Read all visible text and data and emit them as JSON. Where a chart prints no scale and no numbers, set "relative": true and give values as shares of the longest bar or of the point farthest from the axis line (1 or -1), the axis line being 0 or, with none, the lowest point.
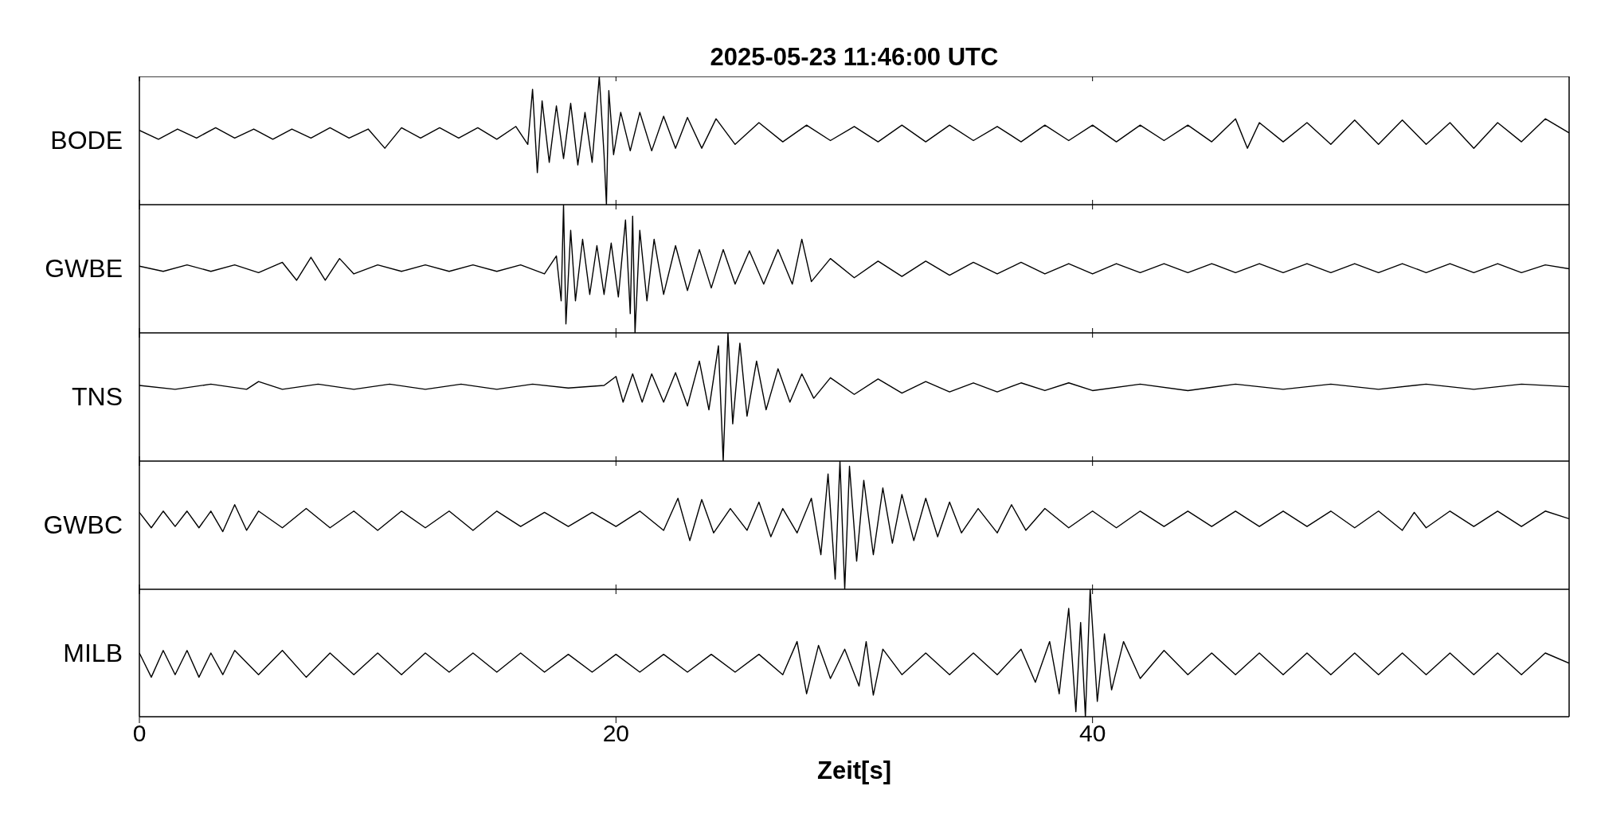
{
  "chart_data": [
    {
      "type": "line",
      "title": "2025-05-23  11:46:00 UTC",
      "ylabel": "BODE",
      "relative": true,
      "color": "#000000",
      "xlim": [
        0,
        60
      ],
      "xticks": [
        0,
        20,
        40
      ],
      "tick_labels": false,
      "x": [
        0,
        0.8,
        1.6,
        2.4,
        3.2,
        4,
        4.8,
        5.6,
        6.4,
        7.2,
        8,
        8.8,
        9.6,
        10.3,
        11,
        11.8,
        12.6,
        13.4,
        14.2,
        15,
        15.8,
        16.3,
        16.5,
        16.7,
        16.9,
        17.2,
        17.5,
        17.8,
        18.1,
        18.4,
        18.7,
        19,
        19.3,
        19.5,
        19.6,
        19.7,
        19.9,
        20.2,
        20.6,
        21,
        21.5,
        22,
        22.5,
        23,
        23.6,
        24.2,
        25,
        26,
        27,
        28,
        29,
        30,
        31,
        32,
        33,
        34,
        35,
        36,
        37,
        38,
        39,
        40,
        41,
        42,
        43,
        44,
        45,
        46,
        46.5,
        47,
        48,
        49,
        50,
        51,
        52,
        53,
        54,
        55,
        56,
        57,
        58,
        59,
        60
      ],
      "values": [
        0.58,
        0.51,
        0.59,
        0.52,
        0.6,
        0.52,
        0.59,
        0.51,
        0.59,
        0.52,
        0.6,
        0.52,
        0.59,
        0.44,
        0.6,
        0.52,
        0.6,
        0.52,
        0.6,
        0.51,
        0.61,
        0.47,
        0.9,
        0.25,
        0.81,
        0.33,
        0.77,
        0.36,
        0.79,
        0.31,
        0.72,
        0.33,
        1,
        0.39,
        0,
        0.89,
        0.39,
        0.72,
        0.42,
        0.72,
        0.42,
        0.69,
        0.44,
        0.68,
        0.44,
        0.67,
        0.47,
        0.64,
        0.49,
        0.62,
        0.5,
        0.61,
        0.49,
        0.62,
        0.49,
        0.62,
        0.5,
        0.61,
        0.49,
        0.62,
        0.5,
        0.62,
        0.49,
        0.62,
        0.5,
        0.62,
        0.49,
        0.67,
        0.44,
        0.64,
        0.49,
        0.64,
        0.47,
        0.66,
        0.47,
        0.66,
        0.47,
        0.64,
        0.44,
        0.64,
        0.49,
        0.67,
        0.56
      ]
    },
    {
      "type": "line",
      "ylabel": "GWBE",
      "relative": true,
      "color": "#000000",
      "xlim": [
        0,
        60
      ],
      "xticks": [
        0,
        20,
        40
      ],
      "tick_labels": false,
      "x": [
        0,
        1,
        2,
        3,
        4,
        5,
        6,
        6.6,
        7.2,
        7.8,
        8.4,
        9,
        10,
        11,
        12,
        13,
        14,
        15,
        16,
        17,
        17.5,
        17.7,
        17.8,
        17.9,
        18.1,
        18.3,
        18.6,
        18.9,
        19.2,
        19.5,
        19.8,
        20.1,
        20.4,
        20.6,
        20.7,
        20.8,
        21,
        21.3,
        21.6,
        22,
        22.5,
        23,
        23.5,
        24,
        24.5,
        25,
        25.6,
        26.2,
        26.8,
        27.4,
        27.8,
        28.2,
        29,
        30,
        31,
        32,
        33,
        34,
        35,
        36,
        37,
        38,
        39,
        40,
        41,
        42,
        43,
        44,
        45,
        46,
        47,
        48,
        49,
        50,
        51,
        52,
        53,
        54,
        55,
        56,
        57,
        58,
        59,
        60
      ],
      "values": [
        0.52,
        0.48,
        0.53,
        0.48,
        0.53,
        0.47,
        0.55,
        0.41,
        0.59,
        0.41,
        0.58,
        0.46,
        0.53,
        0.48,
        0.53,
        0.48,
        0.53,
        0.48,
        0.53,
        0.46,
        0.6,
        0.25,
        1,
        0.07,
        0.8,
        0.25,
        0.73,
        0.3,
        0.68,
        0.3,
        0.7,
        0.28,
        0.88,
        0.15,
        0.91,
        0,
        0.8,
        0.25,
        0.73,
        0.3,
        0.68,
        0.33,
        0.65,
        0.35,
        0.65,
        0.38,
        0.64,
        0.38,
        0.65,
        0.38,
        0.73,
        0.4,
        0.58,
        0.43,
        0.56,
        0.44,
        0.56,
        0.45,
        0.55,
        0.46,
        0.55,
        0.46,
        0.54,
        0.46,
        0.54,
        0.47,
        0.54,
        0.47,
        0.54,
        0.47,
        0.54,
        0.47,
        0.54,
        0.47,
        0.54,
        0.47,
        0.54,
        0.47,
        0.54,
        0.47,
        0.54,
        0.47,
        0.53,
        0.5
      ]
    },
    {
      "type": "line",
      "ylabel": "TNS",
      "relative": true,
      "color": "#000000",
      "xlim": [
        0,
        60
      ],
      "xticks": [
        0,
        20,
        40
      ],
      "tick_labels": false,
      "x": [
        0,
        1.5,
        3,
        4.5,
        5,
        6,
        7.5,
        9,
        10.5,
        12,
        13.5,
        15,
        16.5,
        18,
        19.5,
        20,
        20.3,
        20.7,
        21.1,
        21.5,
        22,
        22.5,
        23,
        23.5,
        23.9,
        24.3,
        24.5,
        24.7,
        24.9,
        25.2,
        25.5,
        25.9,
        26.3,
        26.8,
        27.3,
        27.8,
        28.3,
        29,
        30,
        31,
        32,
        33,
        34,
        35,
        36,
        37,
        38,
        39,
        40,
        42,
        44,
        46,
        48,
        50,
        52,
        54,
        56,
        58,
        60
      ],
      "values": [
        0.59,
        0.56,
        0.6,
        0.56,
        0.62,
        0.56,
        0.6,
        0.56,
        0.6,
        0.56,
        0.6,
        0.56,
        0.6,
        0.57,
        0.59,
        0.66,
        0.46,
        0.68,
        0.46,
        0.68,
        0.46,
        0.69,
        0.43,
        0.78,
        0.4,
        0.9,
        0,
        1,
        0.29,
        0.92,
        0.35,
        0.78,
        0.4,
        0.72,
        0.46,
        0.68,
        0.49,
        0.65,
        0.52,
        0.64,
        0.53,
        0.62,
        0.54,
        0.61,
        0.54,
        0.61,
        0.55,
        0.61,
        0.55,
        0.6,
        0.55,
        0.6,
        0.56,
        0.6,
        0.56,
        0.6,
        0.56,
        0.6,
        0.58
      ]
    },
    {
      "type": "line",
      "ylabel": "GWBC",
      "relative": true,
      "color": "#000000",
      "xlim": [
        0,
        60
      ],
      "xticks": [
        0,
        20,
        40
      ],
      "tick_labels": false,
      "x": [
        0,
        0.5,
        1,
        1.5,
        2,
        2.5,
        3,
        3.5,
        4,
        4.5,
        5,
        6,
        7,
        8,
        9,
        10,
        11,
        12,
        13,
        14,
        15,
        16,
        17,
        18,
        19,
        20,
        21,
        22,
        22.6,
        23.1,
        23.6,
        24.1,
        24.8,
        25.5,
        26,
        26.5,
        27,
        27.6,
        28.2,
        28.6,
        28.9,
        29.2,
        29.4,
        29.6,
        29.8,
        30.1,
        30.4,
        30.8,
        31.2,
        31.6,
        32,
        32.5,
        33,
        33.5,
        34,
        34.5,
        35.2,
        36,
        36.6,
        37.2,
        38,
        39,
        40,
        41,
        42,
        43,
        44,
        45,
        46,
        47,
        48,
        49,
        50,
        51,
        52,
        53,
        53.5,
        54,
        55,
        56,
        57,
        58,
        59,
        60
      ],
      "values": [
        0.6,
        0.48,
        0.61,
        0.49,
        0.61,
        0.48,
        0.61,
        0.45,
        0.66,
        0.46,
        0.61,
        0.48,
        0.63,
        0.48,
        0.61,
        0.46,
        0.61,
        0.48,
        0.61,
        0.46,
        0.61,
        0.49,
        0.6,
        0.49,
        0.6,
        0.49,
        0.61,
        0.46,
        0.71,
        0.38,
        0.7,
        0.44,
        0.63,
        0.46,
        0.68,
        0.41,
        0.63,
        0.44,
        0.71,
        0.27,
        0.9,
        0.08,
        1,
        0,
        0.96,
        0.22,
        0.85,
        0.27,
        0.79,
        0.36,
        0.74,
        0.38,
        0.71,
        0.41,
        0.68,
        0.44,
        0.63,
        0.44,
        0.66,
        0.46,
        0.63,
        0.48,
        0.61,
        0.48,
        0.61,
        0.49,
        0.61,
        0.49,
        0.61,
        0.49,
        0.61,
        0.49,
        0.61,
        0.48,
        0.61,
        0.46,
        0.6,
        0.48,
        0.61,
        0.49,
        0.61,
        0.49,
        0.61,
        0.55
      ]
    },
    {
      "type": "line",
      "ylabel": "MILB",
      "xlabel": "Zeit[s]",
      "relative": true,
      "color": "#000000",
      "xlim": [
        0,
        60
      ],
      "xticks": [
        0,
        20,
        40
      ],
      "tick_labels": "x",
      "x": [
        0,
        0.5,
        1,
        1.5,
        2,
        2.5,
        3,
        3.5,
        4,
        5,
        6,
        7,
        8,
        9,
        10,
        11,
        12,
        13,
        14,
        15,
        16,
        17,
        18,
        19,
        20,
        21,
        22,
        23,
        24,
        25,
        26,
        27,
        27.6,
        28,
        28.5,
        29,
        29.6,
        30.2,
        30.5,
        30.8,
        31.2,
        32,
        33,
        34,
        35,
        36,
        37,
        37.6,
        38.2,
        38.6,
        39,
        39.3,
        39.5,
        39.7,
        39.9,
        40.2,
        40.5,
        40.8,
        41.3,
        42,
        43,
        44,
        45,
        46,
        47,
        48,
        49,
        50,
        51,
        52,
        53,
        54,
        55,
        56,
        57,
        58,
        59,
        60
      ],
      "values": [
        0.5,
        0.31,
        0.52,
        0.33,
        0.52,
        0.31,
        0.5,
        0.33,
        0.52,
        0.33,
        0.52,
        0.31,
        0.5,
        0.33,
        0.5,
        0.33,
        0.5,
        0.35,
        0.5,
        0.35,
        0.5,
        0.35,
        0.49,
        0.35,
        0.49,
        0.35,
        0.49,
        0.35,
        0.49,
        0.35,
        0.49,
        0.33,
        0.59,
        0.18,
        0.56,
        0.3,
        0.53,
        0.24,
        0.59,
        0.17,
        0.53,
        0.33,
        0.5,
        0.33,
        0.5,
        0.33,
        0.53,
        0.27,
        0.59,
        0.18,
        0.85,
        0.04,
        0.74,
        0,
        1,
        0.12,
        0.65,
        0.21,
        0.59,
        0.3,
        0.52,
        0.33,
        0.5,
        0.33,
        0.5,
        0.33,
        0.5,
        0.33,
        0.5,
        0.33,
        0.5,
        0.33,
        0.5,
        0.33,
        0.5,
        0.33,
        0.5,
        0.42
      ]
    }
  ]
}
